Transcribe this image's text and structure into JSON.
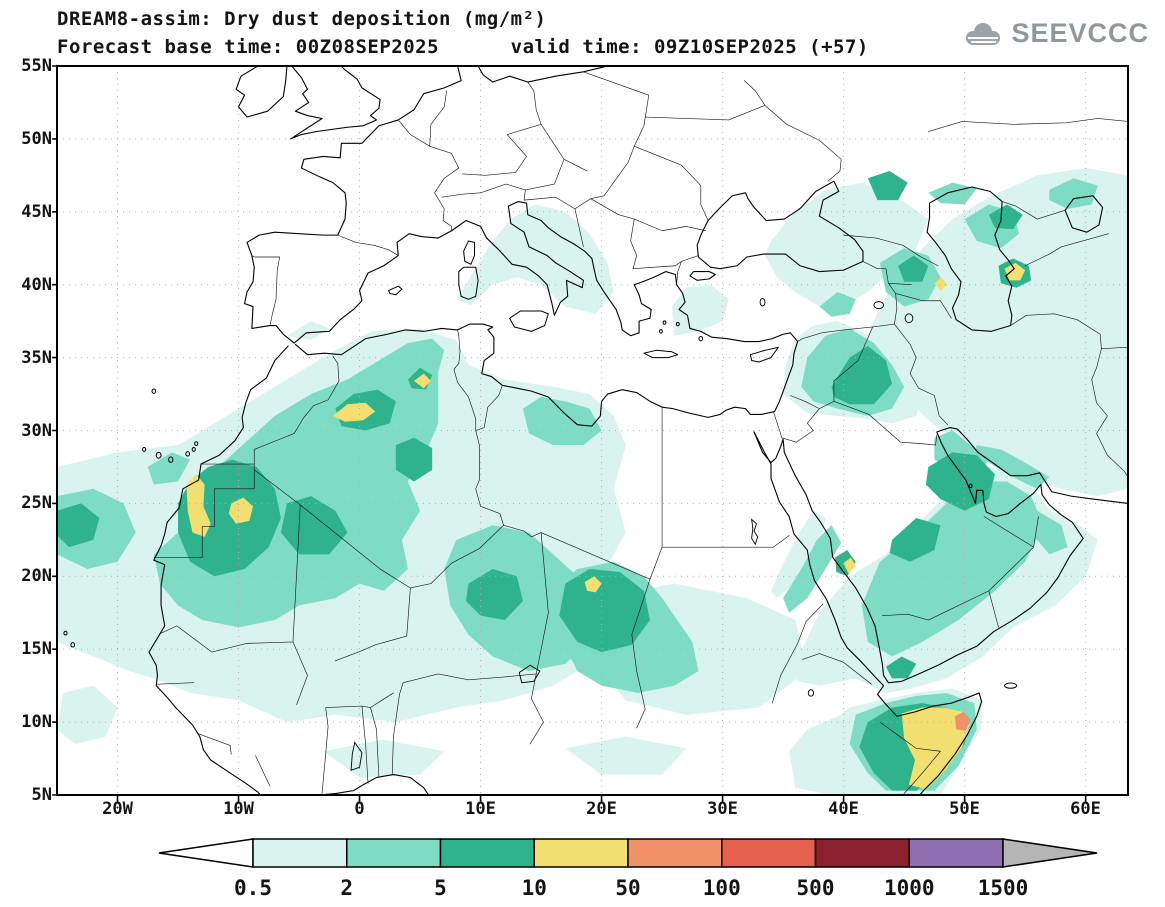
{
  "header": {
    "title": "DREAM8-assim: Dry dust deposition (mg/m²)",
    "subtitle": "Forecast base time: 00Z08SEP2025      valid time: 09Z10SEP2025 (+57)"
  },
  "logo": {
    "text": "SEEVCCC"
  },
  "axes": {
    "lat": [
      "55N",
      "50N",
      "45N",
      "40N",
      "35N",
      "30N",
      "25N",
      "20N",
      "15N",
      "10N",
      "5N"
    ],
    "lon": [
      "20W",
      "10W",
      "0",
      "10E",
      "20E",
      "30E",
      "40E",
      "50E",
      "60E"
    ]
  },
  "colorbar": {
    "levels": [
      "0.5",
      "2",
      "5",
      "10",
      "50",
      "100",
      "500",
      "1000",
      "1500"
    ],
    "colors": [
      "#ffffff",
      "#d9f3ee",
      "#7edcc4",
      "#2fb38d",
      "#f2df72",
      "#f0916a",
      "#e4604d",
      "#8c2130",
      "#8e6fb0",
      "#b5b5b5"
    ],
    "outline_color": "#000000"
  }
}
